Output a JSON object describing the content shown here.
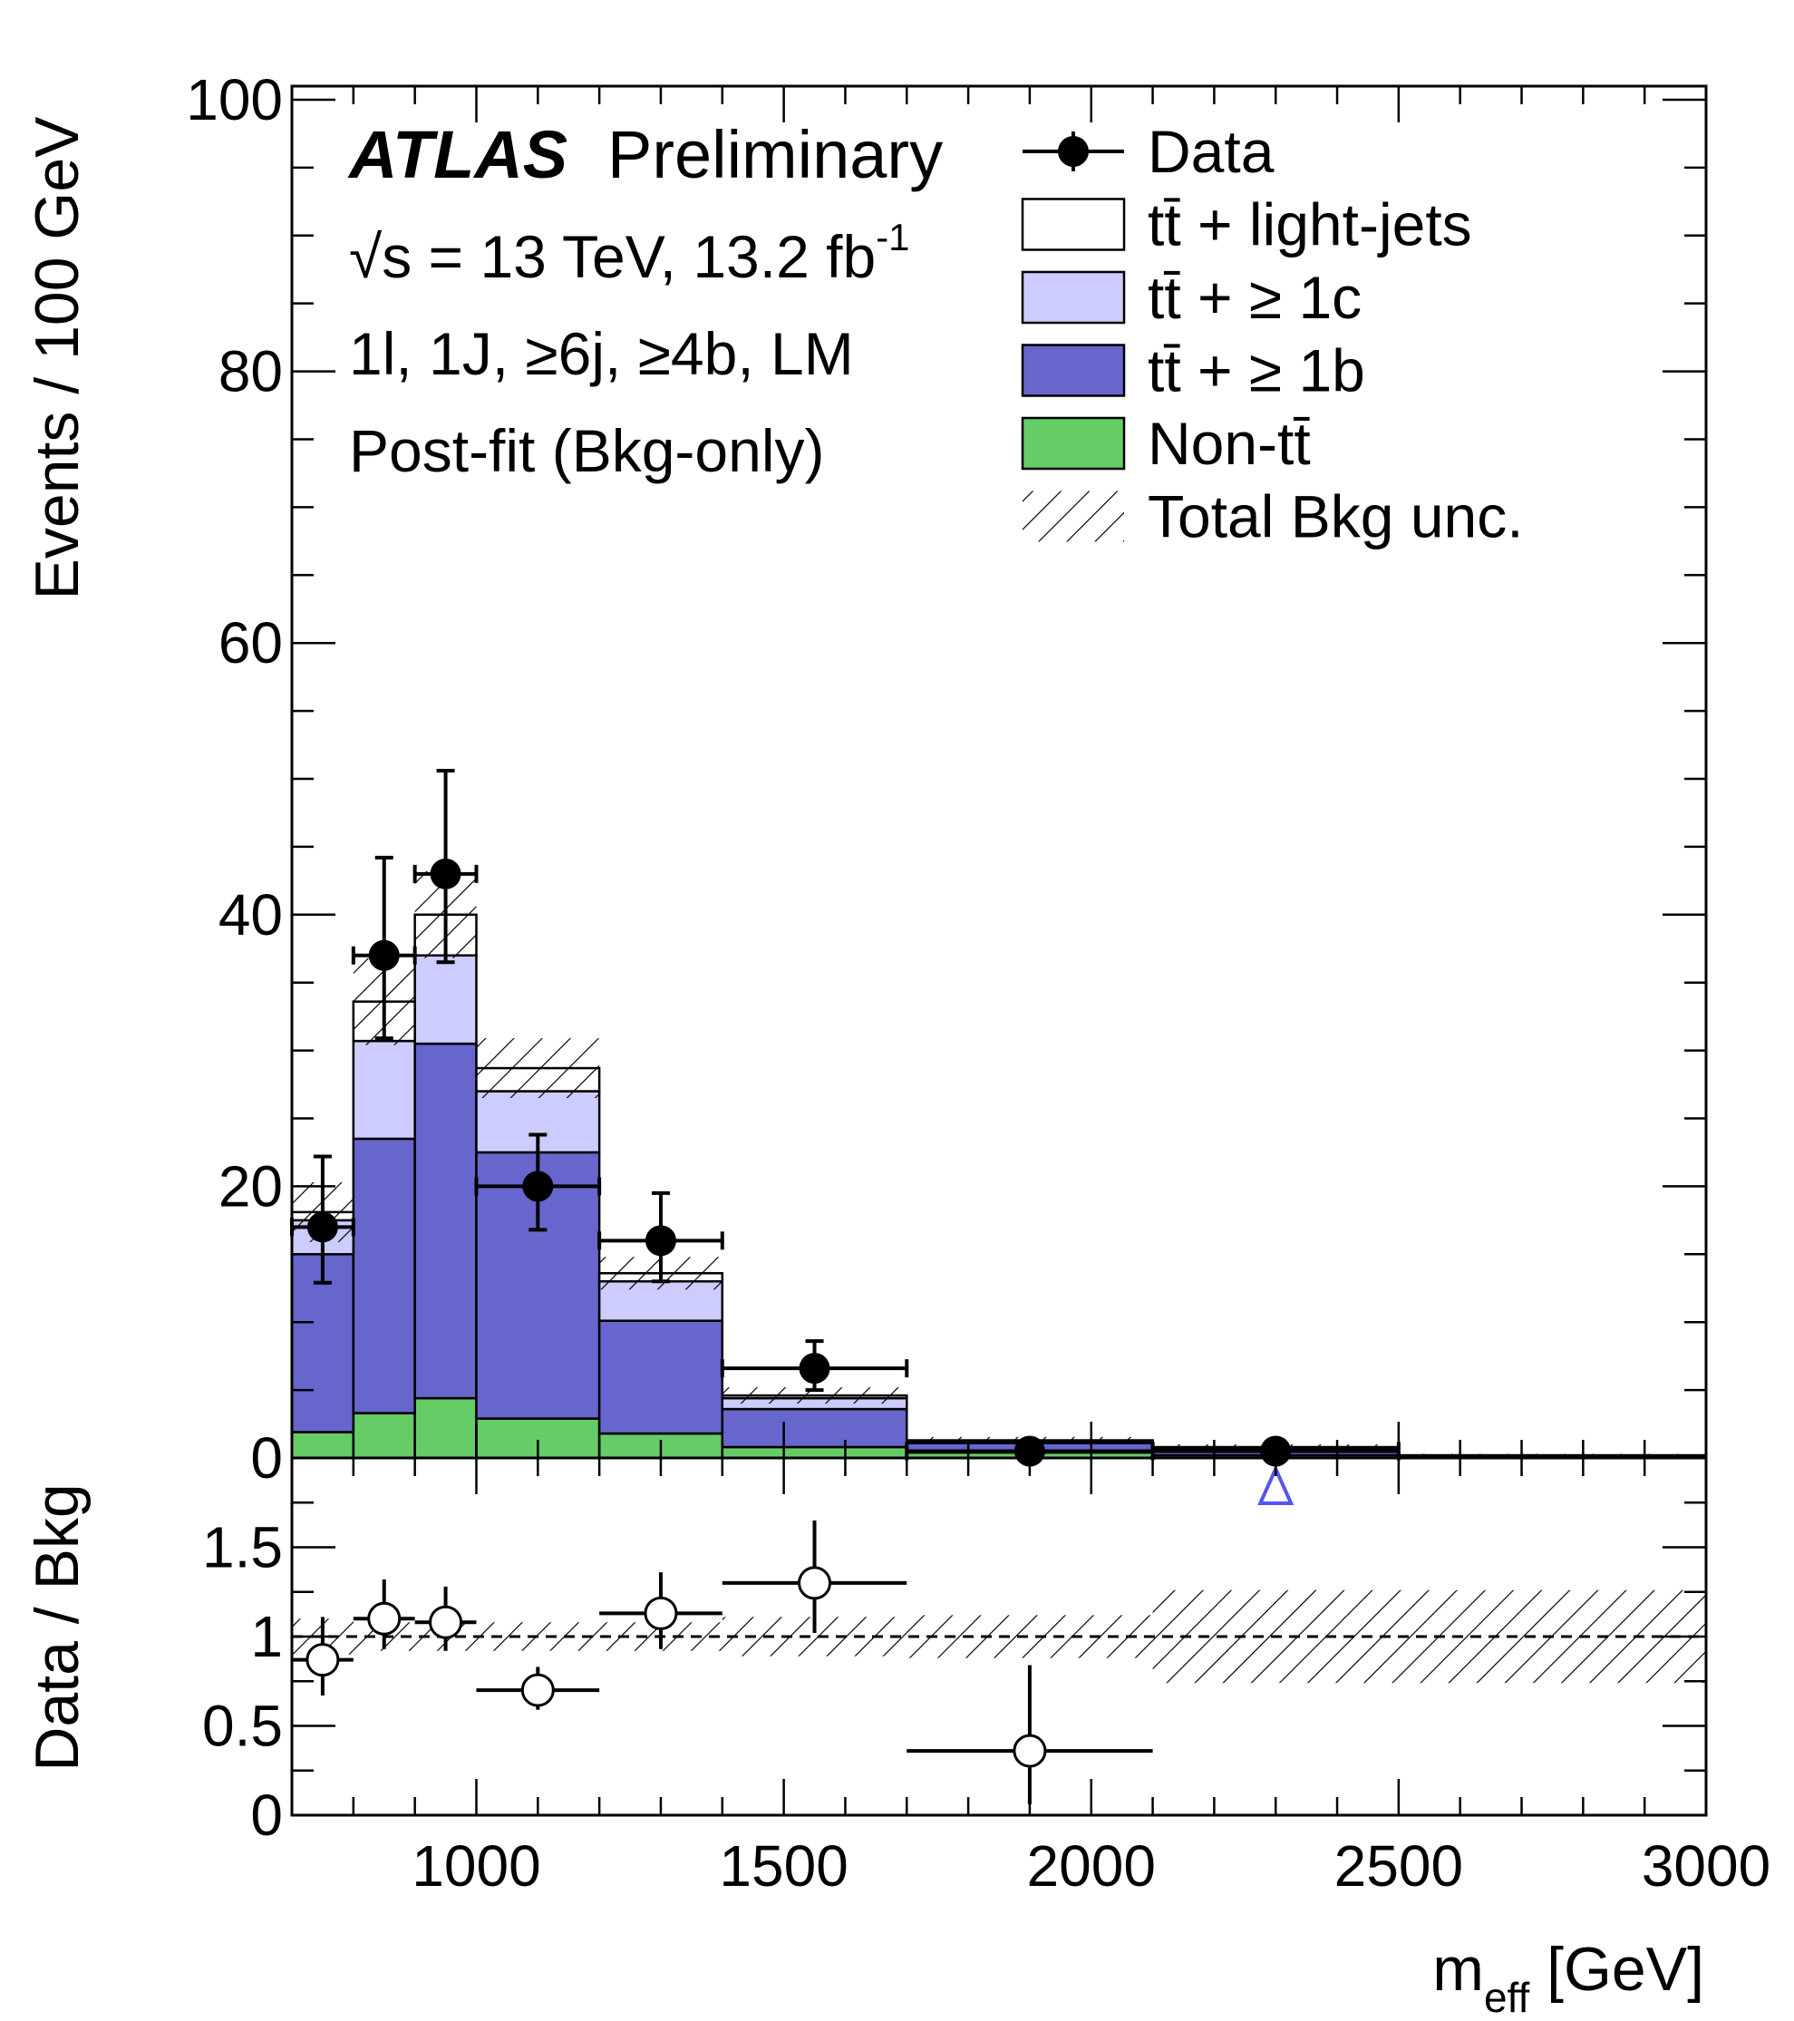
{
  "chart_data": {
    "type": "bar",
    "experiment": "ATLAS",
    "status": "Preliminary",
    "annotations": {
      "sqrt_s": "√s = 13 TeV, 13.2 fb",
      "lumi_exp": "-1",
      "channel": "1l, 1J, ≥6j, ≥4b, LM",
      "fit": "Post-fit (Bkg-only)"
    },
    "xlabel": "m",
    "xlabel_sub": "eff",
    "xlabel_unit": " [GeV]",
    "ylabel": "Events / 100 GeV",
    "ratio_ylabel": "Data / Bkg",
    "xlim": [
      700,
      3000
    ],
    "ylim": [
      0,
      101
    ],
    "ratio_ylim": [
      0,
      2
    ],
    "x_ticks": [
      "1000",
      "1500",
      "2000",
      "2500",
      "3000"
    ],
    "y_ticks": [
      "0",
      "20",
      "40",
      "60",
      "80",
      "100"
    ],
    "ratio_ticks": [
      "0",
      "0.5",
      "1",
      "1.5"
    ],
    "bin_edges": [
      700,
      800,
      900,
      1000,
      1200,
      1400,
      1700,
      2100,
      2500,
      3000
    ],
    "series": [
      {
        "name": "Non-tt̄",
        "key": "nontt",
        "color": "#66cc66",
        "values": [
          1.9,
          3.3,
          4.4,
          2.9,
          1.8,
          0.8,
          0.4,
          0.2,
          0.1
        ]
      },
      {
        "name": "tt̄ + ≥ 1b",
        "key": "ttb",
        "color": "#6666cc",
        "values": [
          13.1,
          20.2,
          26.1,
          19.6,
          8.3,
          2.8,
          0.7,
          0.4,
          0.1
        ]
      },
      {
        "name": "tt̄ + ≥ 1c",
        "key": "ttc",
        "color": "#ccccff",
        "values": [
          2.5,
          7.2,
          6.5,
          4.5,
          2.9,
          0.8,
          0.1,
          0.1,
          0.0
        ]
      },
      {
        "name": "tt̄ + light-jets",
        "key": "ttlight",
        "color": "#ffffff",
        "values": [
          0.6,
          2.9,
          3.0,
          1.7,
          0.6,
          0.2,
          0.1,
          0.1,
          0.0
        ]
      }
    ],
    "total_bkg_unc": [
      2.2,
      3.2,
      3.2,
      2.2,
      1.2,
      0.6,
      0.25,
      0.2,
      0.1
    ],
    "data": {
      "name": "Data",
      "x": [
        750,
        850,
        950,
        1100,
        1300,
        1550,
        1900,
        2300
      ],
      "xerr": [
        50,
        50,
        50,
        100,
        100,
        150,
        200,
        200
      ],
      "y": [
        17,
        37,
        43,
        20,
        16,
        6.6,
        0.5,
        0.5
      ],
      "yerr_up": [
        5.2,
        7.2,
        7.6,
        3.8,
        3.5,
        2.0,
        0.0,
        0.0
      ],
      "yerr_down": [
        4.1,
        6.1,
        6.5,
        3.2,
        3.0,
        1.6,
        0.0,
        0.0
      ]
    },
    "ratio": {
      "x": [
        750,
        850,
        950,
        1100,
        1300,
        1550,
        1900
      ],
      "xerr": [
        50,
        50,
        50,
        100,
        100,
        150,
        200
      ],
      "y": [
        0.87,
        1.1,
        1.08,
        0.7,
        1.13,
        1.3,
        0.36
      ],
      "yerr_up": [
        0.24,
        0.22,
        0.2,
        0.13,
        0.23,
        0.35,
        0.48
      ],
      "yerr_down": [
        0.2,
        0.17,
        0.16,
        0.11,
        0.2,
        0.28,
        0.3
      ],
      "offscale_x": [
        2300
      ]
    },
    "ratio_unc": [
      0.1,
      0.08,
      0.08,
      0.08,
      0.08,
      0.11,
      0.12,
      0.26,
      0.26
    ],
    "legend_position": "top-right",
    "legend": [
      {
        "label": "Data",
        "style": "marker"
      },
      {
        "label": "tt̄ + light-jets",
        "style": "box",
        "color": "#ffffff"
      },
      {
        "label": "tt̄ + ≥ 1c",
        "style": "box",
        "color": "#ccccff"
      },
      {
        "label": "tt̄ + ≥ 1b",
        "style": "box",
        "color": "#6666cc"
      },
      {
        "label": "Non-tt̄",
        "style": "box",
        "color": "#66cc66"
      },
      {
        "label": "Total Bkg unc.",
        "style": "hatch"
      }
    ]
  }
}
